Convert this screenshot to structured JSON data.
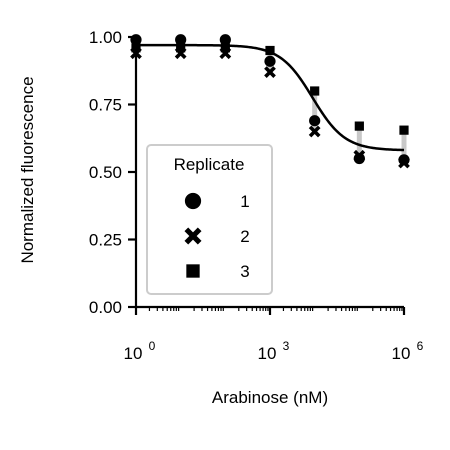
{
  "chart_data": {
    "type": "scatter",
    "xlabel": "Arabinose (nM)",
    "ylabel": "Normalized fluorescence",
    "xscale": "log",
    "xlim": [
      1,
      1000000
    ],
    "ylim": [
      0,
      1.0
    ],
    "x_ticks": [
      {
        "value": 1,
        "base": "10",
        "exp": "0"
      },
      {
        "value": 1000,
        "base": "10",
        "exp": "3"
      },
      {
        "value": 1000000,
        "base": "10",
        "exp": "6"
      }
    ],
    "y_ticks": [
      {
        "value": 0.0,
        "label": "0.00"
      },
      {
        "value": 0.25,
        "label": "0.25"
      },
      {
        "value": 0.5,
        "label": "0.50"
      },
      {
        "value": 0.75,
        "label": "0.75"
      },
      {
        "value": 1.0,
        "label": "1.00"
      }
    ],
    "x": [
      1,
      10,
      100,
      1000,
      10000,
      100000,
      1000000
    ],
    "series": [
      {
        "name": "1",
        "marker": "circle",
        "values": [
          0.99,
          0.99,
          0.99,
          0.91,
          0.69,
          0.55,
          0.545
        ]
      },
      {
        "name": "2",
        "marker": "x",
        "values": [
          0.94,
          0.94,
          0.94,
          0.87,
          0.65,
          0.56,
          0.535
        ]
      },
      {
        "name": "3",
        "marker": "square",
        "values": [
          0.96,
          0.96,
          0.96,
          0.95,
          0.8,
          0.67,
          0.655
        ]
      }
    ],
    "fit": {
      "top": 0.97,
      "bottom": 0.58,
      "ec50": 9000,
      "hill": 1.2
    },
    "legend": {
      "title": "Replicate",
      "placement": "lower-left",
      "entries": [
        "1",
        "2",
        "3"
      ]
    },
    "grid": false,
    "colors": {
      "points": "#000000",
      "fit": "#000000",
      "error_band": "#c8c8c8"
    }
  }
}
